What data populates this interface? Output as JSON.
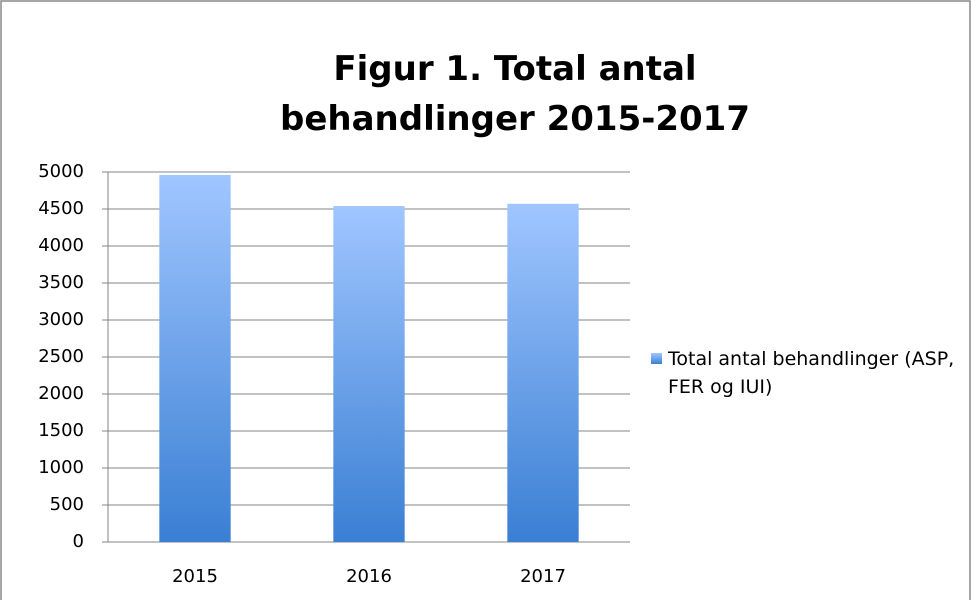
{
  "chart_data": {
    "type": "bar",
    "title": "Figur 1. Total antal behandlinger 2015-2017",
    "categories": [
      "2015",
      "2016",
      "2017"
    ],
    "series": [
      {
        "name": "Total antal behandlinger (ASP, FER og IUI)",
        "color": "#4a86d8",
        "values": [
          4960,
          4540,
          4570
        ]
      }
    ],
    "ylim": [
      0,
      5000
    ],
    "yticks": [
      0,
      500,
      1000,
      1500,
      2000,
      2500,
      3000,
      3500,
      4000,
      4500,
      5000
    ],
    "grid": true,
    "legend": "right"
  }
}
